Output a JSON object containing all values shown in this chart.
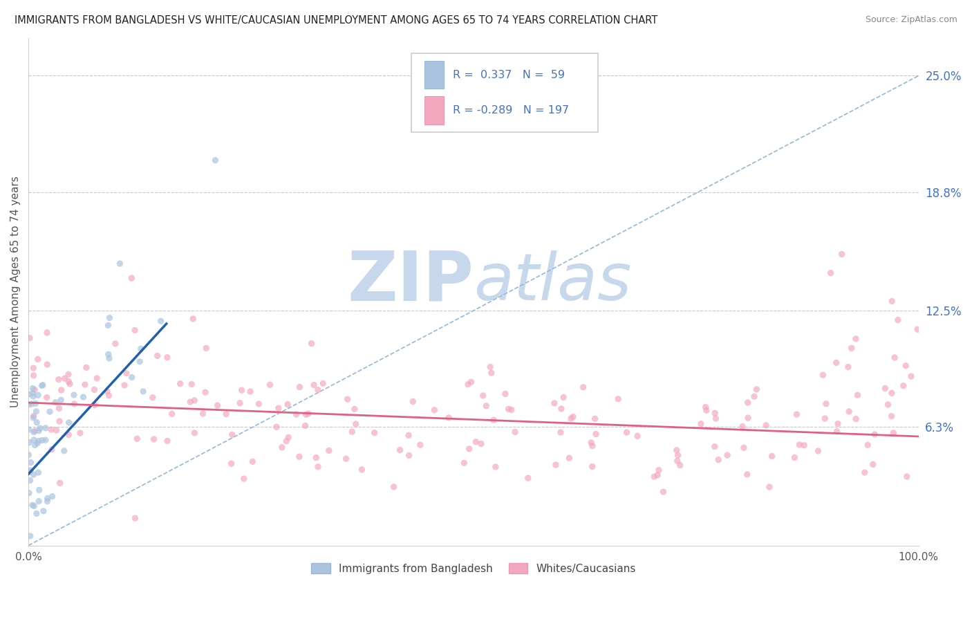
{
  "title": "IMMIGRANTS FROM BANGLADESH VS WHITE/CAUCASIAN UNEMPLOYMENT AMONG AGES 65 TO 74 YEARS CORRELATION CHART",
  "source": "Source: ZipAtlas.com",
  "ylabel": "Unemployment Among Ages 65 to 74 years",
  "xlim": [
    0,
    1.0
  ],
  "ylim": [
    0.0,
    0.27
  ],
  "ytick_positions": [
    0.063,
    0.125,
    0.188,
    0.25
  ],
  "ytick_labels": [
    "6.3%",
    "12.5%",
    "18.8%",
    "25.0%"
  ],
  "color_bangladesh": "#aac4e0",
  "color_caucasian": "#f4a8bf",
  "line_color_bangladesh": "#2060b0",
  "line_color_caucasian": "#e06080",
  "diag_line_color": "#90b8e0",
  "background_color": "#ffffff",
  "watermark_zip": "ZIP",
  "watermark_atlas": "atlas",
  "watermark_color": "#c8d8ec",
  "legend_items": [
    {
      "label": "Immigrants from Bangladesh",
      "color": "#aac4e0"
    },
    {
      "label": "Whites/Caucasians",
      "color": "#f4a8bf"
    }
  ]
}
